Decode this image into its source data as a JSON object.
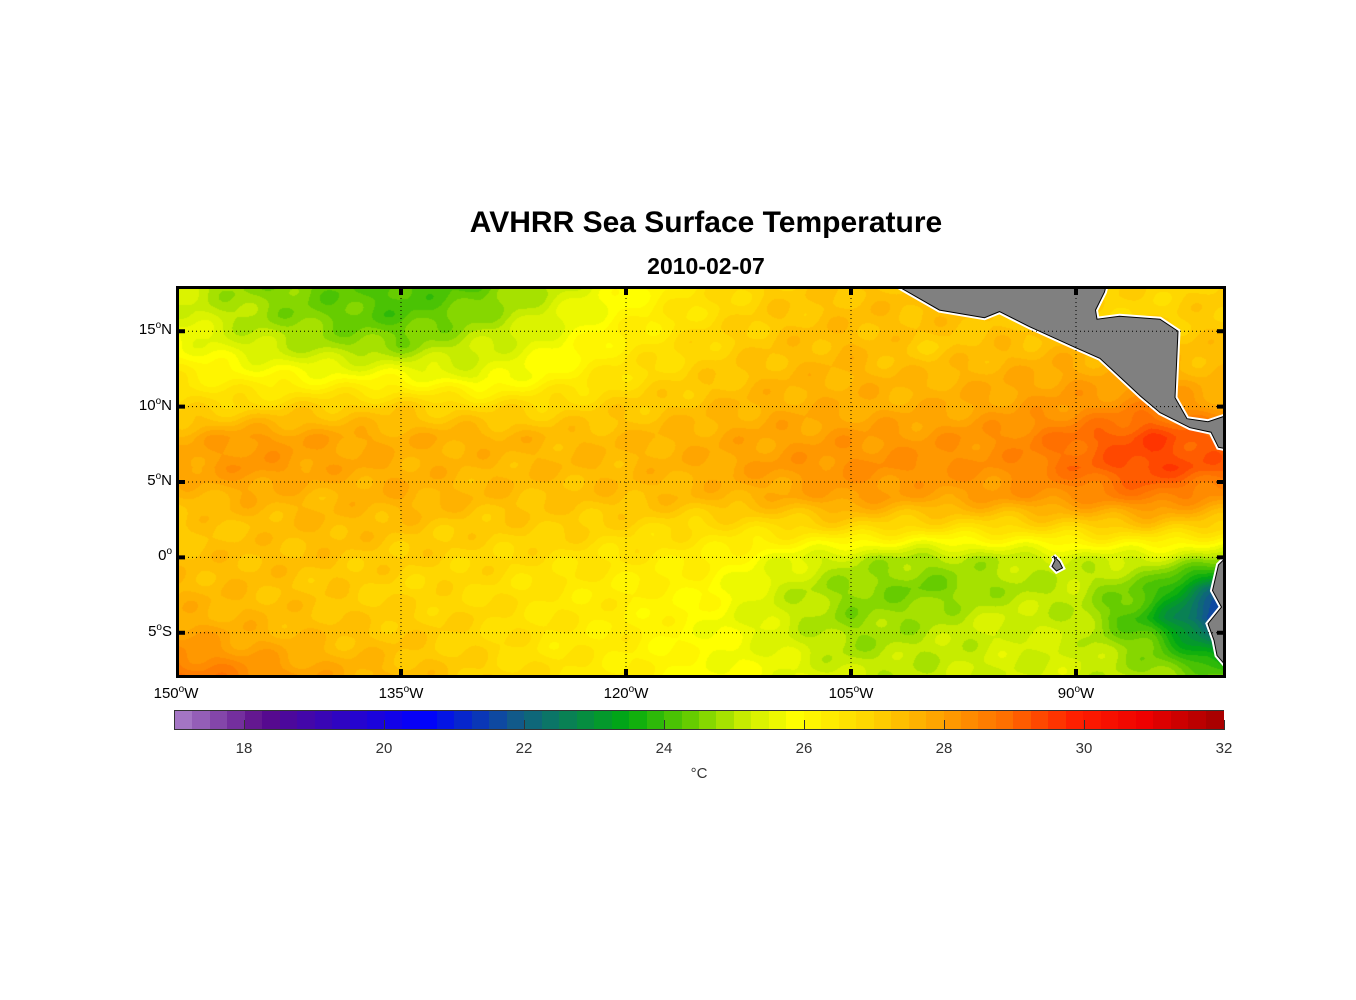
{
  "title": "AVHRR Sea Surface Temperature",
  "subtitle": "2010-02-07",
  "chart_data": {
    "type": "heatmap",
    "title": "AVHRR Sea Surface Temperature",
    "subtitle": "2010-02-07",
    "lon_range": [
      -150,
      -80
    ],
    "lat_range": [
      -8,
      18
    ],
    "grid": true,
    "x_ticks": [
      {
        "value": -150,
        "deg": "150",
        "hem": "W"
      },
      {
        "value": -135,
        "deg": "135",
        "hem": "W"
      },
      {
        "value": -120,
        "deg": "120",
        "hem": "W"
      },
      {
        "value": -105,
        "deg": "105",
        "hem": "W"
      },
      {
        "value": -90,
        "deg": "90",
        "hem": "W"
      }
    ],
    "y_ticks": [
      {
        "value": 15,
        "deg": "15",
        "hem": "N"
      },
      {
        "value": 10,
        "deg": "10",
        "hem": "N"
      },
      {
        "value": 5,
        "deg": "5",
        "hem": "N"
      },
      {
        "value": 0,
        "deg": "0",
        "hem": ""
      },
      {
        "value": -5,
        "deg": "5",
        "hem": "S"
      }
    ],
    "sst_grid": {
      "lons": [
        -150,
        -145,
        -140,
        -135,
        -130,
        -125,
        -120,
        -115,
        -110,
        -105,
        -100,
        -95,
        -90,
        -85,
        -80
      ],
      "lats": [
        18,
        16,
        14,
        12,
        10,
        8,
        6,
        4,
        2,
        0,
        -2,
        -4,
        -6,
        -8
      ],
      "values": [
        [
          25.3,
          24.8,
          24.5,
          24.2,
          24.4,
          25.2,
          26,
          26.7,
          27.2,
          27.4,
          27.4,
          27.5,
          27.2,
          27.0,
          27.2
        ],
        [
          25.6,
          25.0,
          24.6,
          24.3,
          24.8,
          25.5,
          26.2,
          26.8,
          27.3,
          27.5,
          27.5,
          27.3,
          27.0,
          27.0,
          27.3
        ],
        [
          26.0,
          25.4,
          25.0,
          24.8,
          25.3,
          25.8,
          26.5,
          27.0,
          27.4,
          27.6,
          27.2,
          27.5,
          27.6,
          27.5,
          27.4
        ],
        [
          26.5,
          26.2,
          26.0,
          26.0,
          25.6,
          26.2,
          26.8,
          27.2,
          27.6,
          27.7,
          27.6,
          27.8,
          28.0,
          27.8,
          27.6
        ],
        [
          27.0,
          27.0,
          27.2,
          27.2,
          27.0,
          27.0,
          27.2,
          27.5,
          27.8,
          27.8,
          27.8,
          28.0,
          28.3,
          28.6,
          28.0
        ],
        [
          27.8,
          28.2,
          28.0,
          27.8,
          27.8,
          27.6,
          27.6,
          27.8,
          28.0,
          28.2,
          28.2,
          28.4,
          29.0,
          29.6,
          29.0
        ],
        [
          28.0,
          28.3,
          28.0,
          27.8,
          27.6,
          27.6,
          27.6,
          27.8,
          28.2,
          28.4,
          28.4,
          28.4,
          29.0,
          29.6,
          29.2
        ],
        [
          27.5,
          27.8,
          27.6,
          27.8,
          27.6,
          27.4,
          27.5,
          27.6,
          27.8,
          28.2,
          28.0,
          28.2,
          28.4,
          28.8,
          28.2
        ],
        [
          27.3,
          27.4,
          27.6,
          27.4,
          27.2,
          27.2,
          27.0,
          26.8,
          26.8,
          27.0,
          26.8,
          26.8,
          27.0,
          27.2,
          27.0
        ],
        [
          27.4,
          27.5,
          27.4,
          27.2,
          27.0,
          26.8,
          26.6,
          26.4,
          25.8,
          25.2,
          25.0,
          25.2,
          25.4,
          25.4,
          25.0
        ],
        [
          27.6,
          27.5,
          27.3,
          27.0,
          26.9,
          26.6,
          26.4,
          26.2,
          25.4,
          24.8,
          24.6,
          25.0,
          25.2,
          24.4,
          22.0
        ],
        [
          27.8,
          27.6,
          27.4,
          27.2,
          27.0,
          26.6,
          26.4,
          26.0,
          25.4,
          24.8,
          25.0,
          25.4,
          25.2,
          23.8,
          21.0
        ],
        [
          28.4,
          28.0,
          27.6,
          27.4,
          27.0,
          26.6,
          26.4,
          26.0,
          25.6,
          25.0,
          25.2,
          25.4,
          25.4,
          24.6,
          22.8
        ],
        [
          29.0,
          28.6,
          28.0,
          27.6,
          27.2,
          26.8,
          26.4,
          26.0,
          25.8,
          25.4,
          25.2,
          25.4,
          25.4,
          25.0,
          24.6
        ]
      ]
    },
    "land": [
      {
        "name": "central-america",
        "lonlat": [
          [
            -101.9,
            18
          ],
          [
            -99.1,
            16.4
          ],
          [
            -96.1,
            15.9
          ],
          [
            -95.1,
            16.3
          ],
          [
            -93.1,
            15.3
          ],
          [
            -90,
            13.9
          ],
          [
            -88.4,
            13.2
          ],
          [
            -85.7,
            10.7
          ],
          [
            -84.4,
            9.6
          ],
          [
            -82.4,
            8.6
          ],
          [
            -81,
            8.3
          ],
          [
            -80.5,
            7.3
          ],
          [
            -80,
            7.2
          ],
          [
            -80,
            9.4
          ],
          [
            -81.2,
            9.0
          ],
          [
            -82.6,
            9.2
          ],
          [
            -83.4,
            10.6
          ],
          [
            -83.2,
            15.0
          ],
          [
            -84.4,
            15.8
          ],
          [
            -87.1,
            16
          ],
          [
            -88.6,
            15.8
          ],
          [
            -88.7,
            16.4
          ],
          [
            -88.1,
            17.6
          ],
          [
            -88.0,
            18
          ]
        ]
      },
      {
        "name": "south-america",
        "lonlat": [
          [
            -80,
            0
          ],
          [
            -80.5,
            -0.5
          ],
          [
            -80.9,
            -2.2
          ],
          [
            -80.3,
            -3.3
          ],
          [
            -81.2,
            -4.4
          ],
          [
            -80.8,
            -5.5
          ],
          [
            -80.6,
            -6.5
          ],
          [
            -80,
            -7.2
          ]
        ]
      },
      {
        "name": "galapagos",
        "lonlat": [
          [
            -91.5,
            0.1
          ],
          [
            -91.1,
            -0.3
          ],
          [
            -90.9,
            -0.7
          ],
          [
            -91.3,
            -0.9
          ],
          [
            -91.6,
            -0.6
          ],
          [
            -91.4,
            -0.2
          ]
        ]
      }
    ],
    "land_color": "#808080",
    "colorbar": {
      "range": [
        17,
        32
      ],
      "ticks": [
        "18",
        "20",
        "22",
        "24",
        "26",
        "28",
        "30",
        "32"
      ],
      "tick_values": [
        18,
        20,
        22,
        24,
        26,
        28,
        30,
        32
      ],
      "label": "°C",
      "stops": [
        [
          17,
          "#b48cd0"
        ],
        [
          18.4,
          "#5a0a8a"
        ],
        [
          20.7,
          "#0000ff"
        ],
        [
          22,
          "#115a8a"
        ],
        [
          22.6,
          "#0a7a60"
        ],
        [
          23.6,
          "#00aa10"
        ],
        [
          24.5,
          "#66cc00"
        ],
        [
          25.3,
          "#ccee00"
        ],
        [
          26,
          "#ffff00"
        ],
        [
          27,
          "#ffd700"
        ],
        [
          28,
          "#ffa500"
        ],
        [
          29,
          "#ff7000"
        ],
        [
          30,
          "#ff2000"
        ],
        [
          31,
          "#ee0000"
        ],
        [
          32,
          "#aa0000"
        ]
      ],
      "levels": 60
    }
  }
}
